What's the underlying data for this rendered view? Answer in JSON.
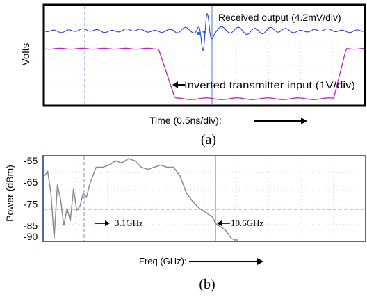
{
  "chart_data": [
    {
      "type": "line",
      "panel_label": "(a)",
      "ylabel": "Volts",
      "xlabel": "Time (0.5ns/div):",
      "grid": true,
      "annotations": [
        {
          "text": "Received output (4.2mV/div)"
        },
        {
          "text": "Inverted transmitter input (1V/div)"
        }
      ],
      "colors": {
        "received": "#2b3fd6",
        "input": "#c020c0",
        "frame": "#000000",
        "grid": "#6f8fd0"
      }
    },
    {
      "type": "line",
      "panel_label": "(b)",
      "ylabel": "Power (dBm)",
      "xlabel": "Freq (GHz):",
      "y_ticks": [
        "-55",
        "-65",
        "-75",
        "-85",
        "-90"
      ],
      "ylim": [
        -92,
        -53
      ],
      "grid": true,
      "annotations": [
        {
          "text": "3.1GHz"
        },
        {
          "text": "10.6GHz"
        }
      ],
      "series": [
        {
          "x": [
            0.0,
            0.2,
            0.4,
            0.6,
            0.8,
            1.0,
            1.2,
            1.4,
            1.6,
            1.8,
            2.0,
            2.2,
            2.4,
            2.6,
            2.8,
            3.0,
            3.2,
            3.6,
            4.0,
            4.4,
            4.8,
            5.2,
            5.6,
            6.0,
            6.4,
            6.8,
            7.2,
            7.6,
            8.0,
            8.4,
            8.8,
            9.2,
            9.6,
            10.0,
            10.4,
            10.6,
            10.8,
            11.0,
            11.2,
            11.4,
            11.6,
            11.8,
            12.0
          ],
          "values": [
            -62,
            -60,
            -70,
            -91,
            -66,
            -73,
            -85,
            -77,
            -83,
            -68,
            -78,
            -76,
            -70,
            -72,
            -66,
            -62,
            -58,
            -58,
            -57,
            -55,
            -56,
            -54,
            -55,
            -58,
            -59,
            -58,
            -57,
            -58,
            -58,
            -62,
            -70,
            -74,
            -77,
            -79,
            -81,
            -84,
            -85,
            -86,
            -87,
            -89,
            -91,
            -93,
            -95
          ]
        }
      ],
      "colors": {
        "trace": "#8a8a94",
        "frame": "#4a6aa8",
        "grid": "#6f8fd0"
      }
    }
  ]
}
